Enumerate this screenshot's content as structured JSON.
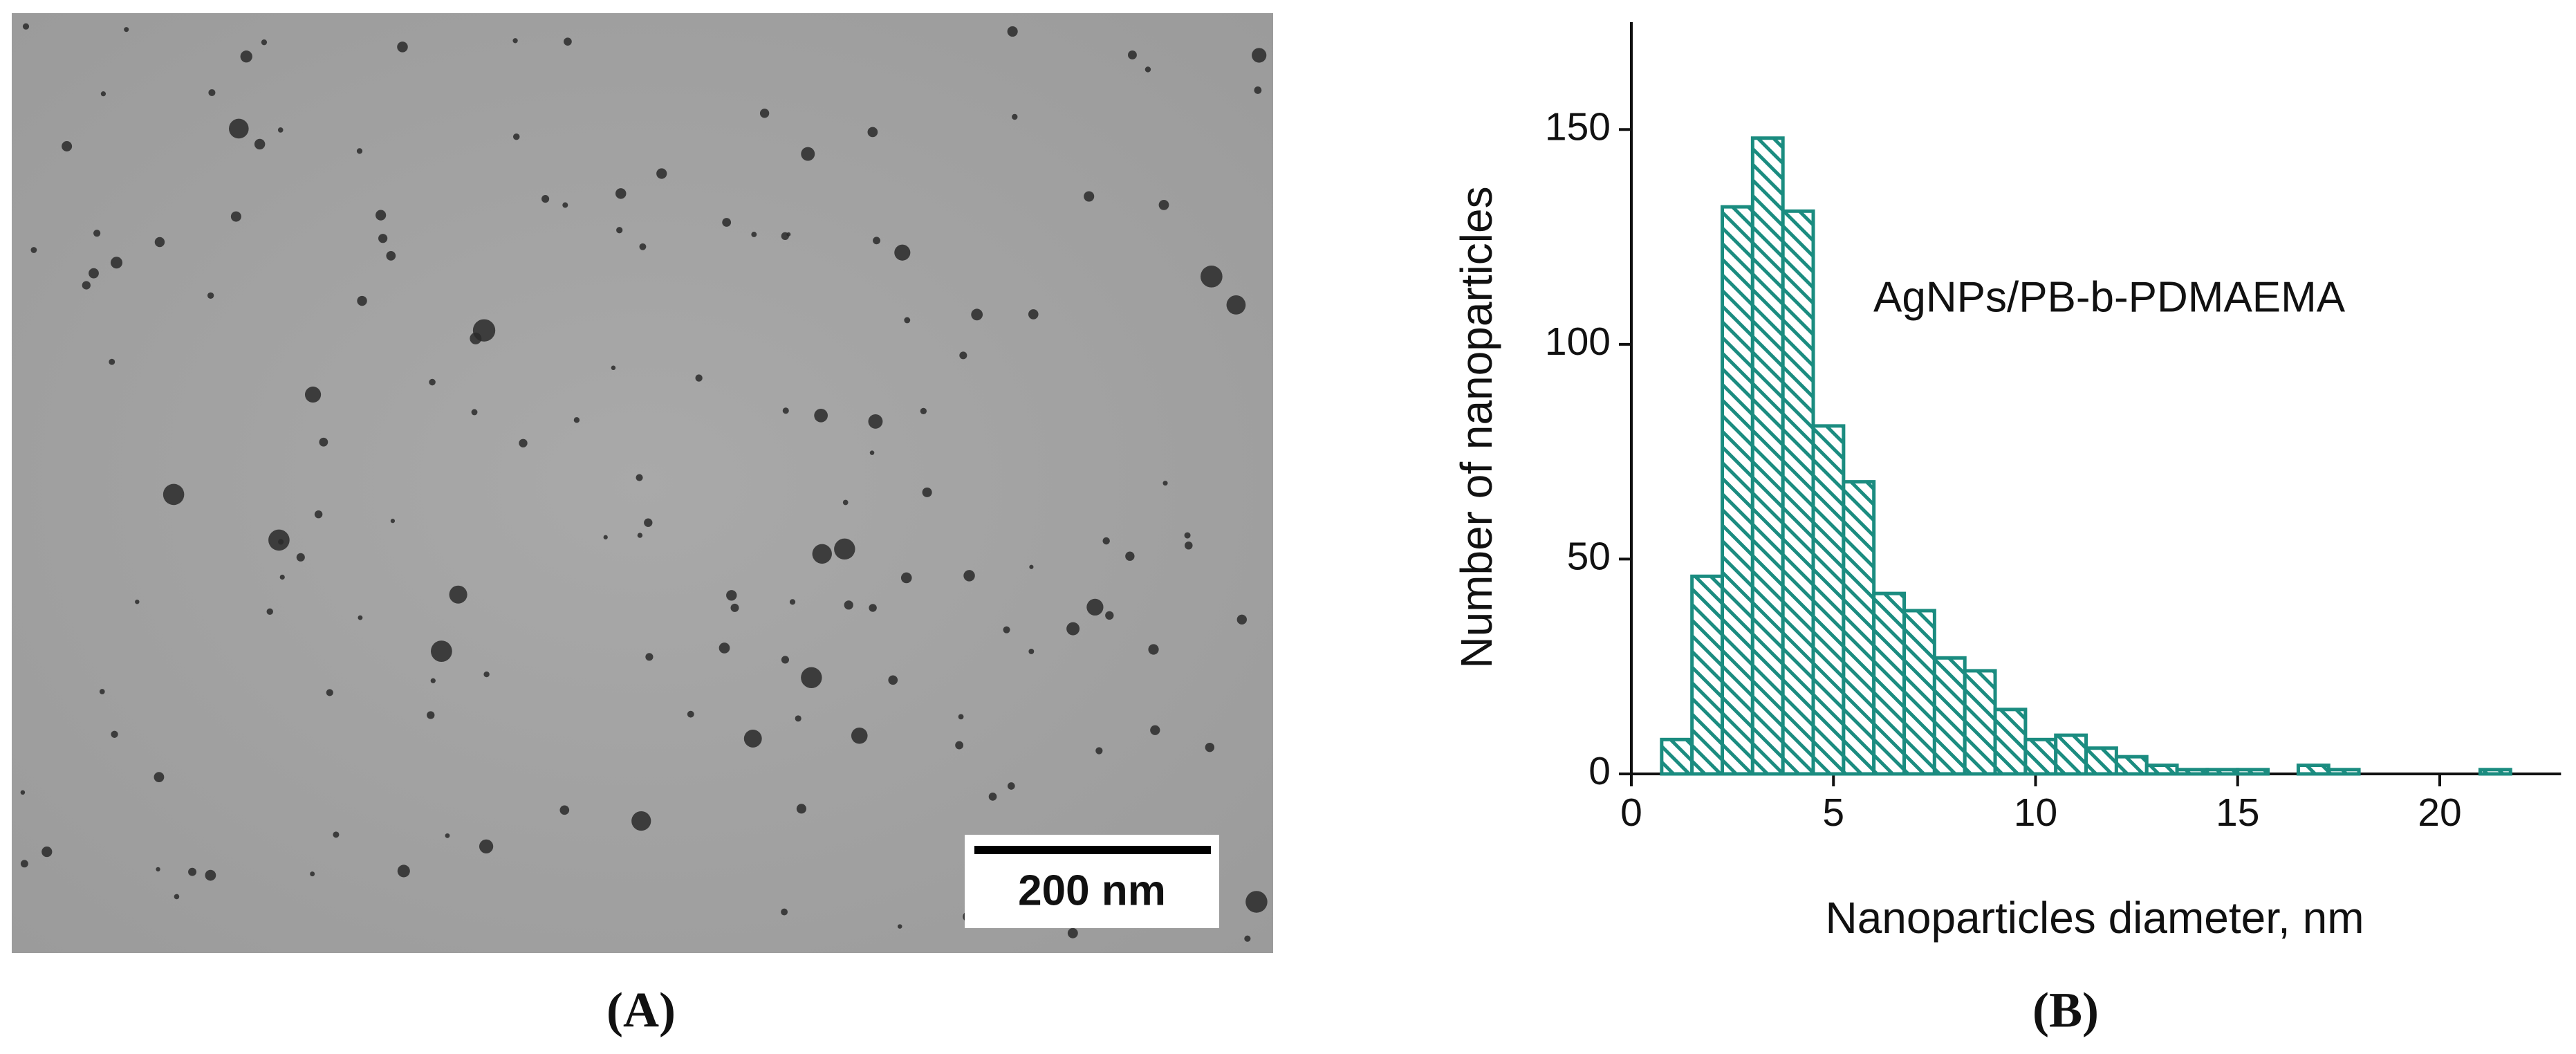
{
  "panels": {
    "a": {
      "label": "(A)",
      "scale_bar": "200 nm"
    },
    "b": {
      "label": "(B)"
    }
  },
  "chart_data": {
    "type": "histogram",
    "annotation": "AgNPs/PB-b-PDMAEMA",
    "x_label": "Nanoparticles diameter, nm",
    "y_label": "Number of nanoparticles",
    "bins": [
      0.75,
      1.5,
      2.25,
      3,
      3.75,
      4.5,
      5.25,
      6,
      6.75,
      7.5,
      8.25,
      9,
      9.75,
      10.5,
      11.25,
      12,
      12.75,
      13.5,
      14.25,
      15,
      15.75,
      16.5,
      17.25,
      18,
      18.75,
      19.5,
      20.25,
      21,
      21.75
    ],
    "values": [
      8,
      46,
      132,
      148,
      131,
      81,
      68,
      42,
      38,
      27,
      24,
      15,
      8,
      9,
      6,
      4,
      2,
      1,
      1,
      1,
      0,
      2,
      1,
      0,
      0,
      0,
      0,
      1
    ],
    "color": "#1b8c80",
    "xlim": [
      0,
      23
    ],
    "ylim": [
      0,
      175
    ],
    "xticks": [
      0,
      5,
      10,
      15,
      20
    ],
    "yticks": [
      0,
      50,
      100,
      150
    ]
  }
}
